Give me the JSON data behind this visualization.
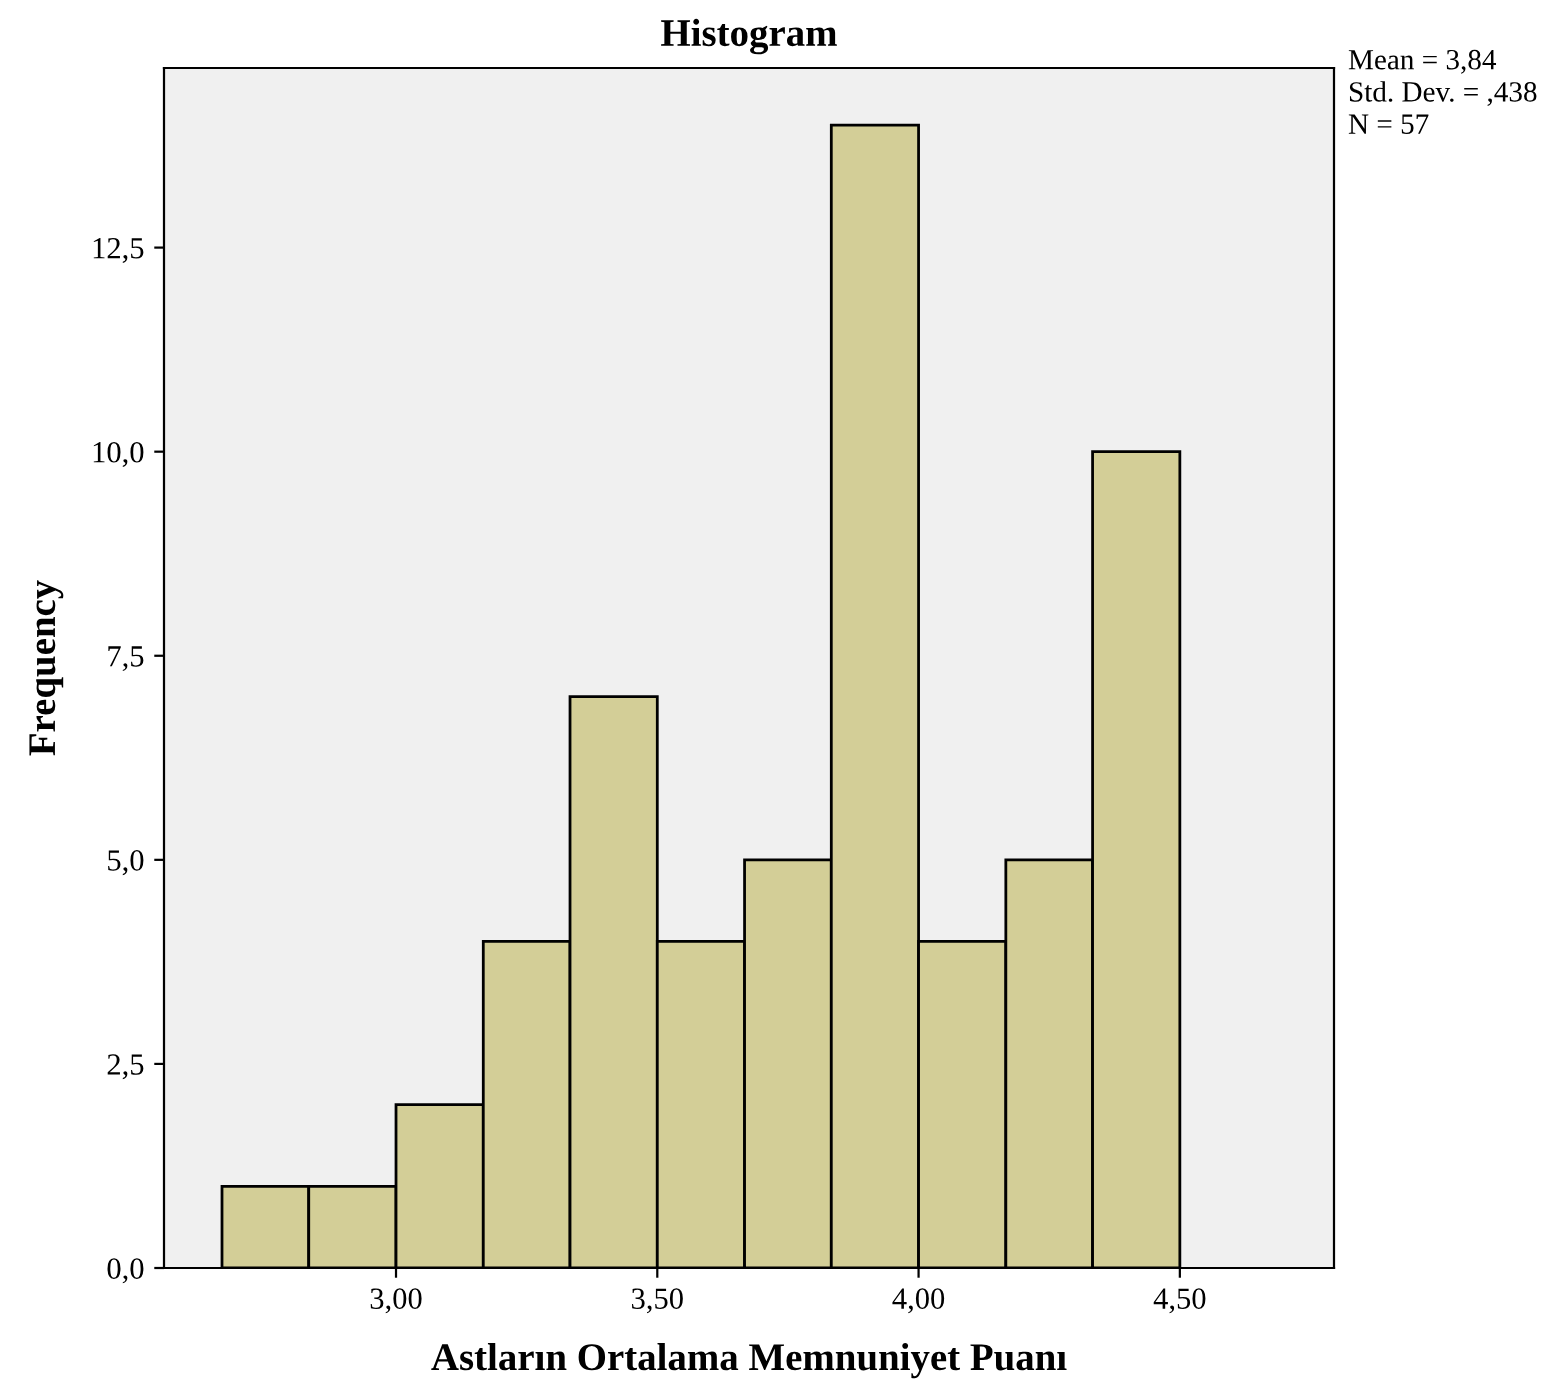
{
  "chart_data": {
    "type": "histogram",
    "title": "Histogram",
    "xlabel": "Astların Ortalama Memnuniyet Puanı",
    "ylabel": "Frequency",
    "bins": [
      2.667,
      2.833,
      3.0,
      3.167,
      3.333,
      3.5,
      3.667,
      3.833,
      4.0,
      4.167,
      4.333,
      4.5
    ],
    "values": [
      1,
      1,
      2,
      4,
      7,
      4,
      5,
      14,
      4,
      5,
      10
    ],
    "color": "#d3ce97",
    "xlim": [
      2.556,
      4.795
    ],
    "xticks": [
      {
        "value": 3.0,
        "label": "3,00"
      },
      {
        "value": 3.5,
        "label": "3,50"
      },
      {
        "value": 4.0,
        "label": "4,00"
      },
      {
        "value": 4.5,
        "label": "4,50"
      }
    ],
    "ylim": [
      0,
      14.7
    ],
    "yticks": [
      {
        "value": 0,
        "label": "0,0"
      },
      {
        "value": 2.5,
        "label": "2,5"
      },
      {
        "value": 5,
        "label": "5,0"
      },
      {
        "value": 7.5,
        "label": "7,5"
      },
      {
        "value": 10,
        "label": "10,0"
      },
      {
        "value": 12.5,
        "label": "12,5"
      }
    ],
    "grid": false,
    "annotations": [
      "Mean = 3,84",
      "Std. Dev. = ,438",
      "N = 57"
    ]
  }
}
